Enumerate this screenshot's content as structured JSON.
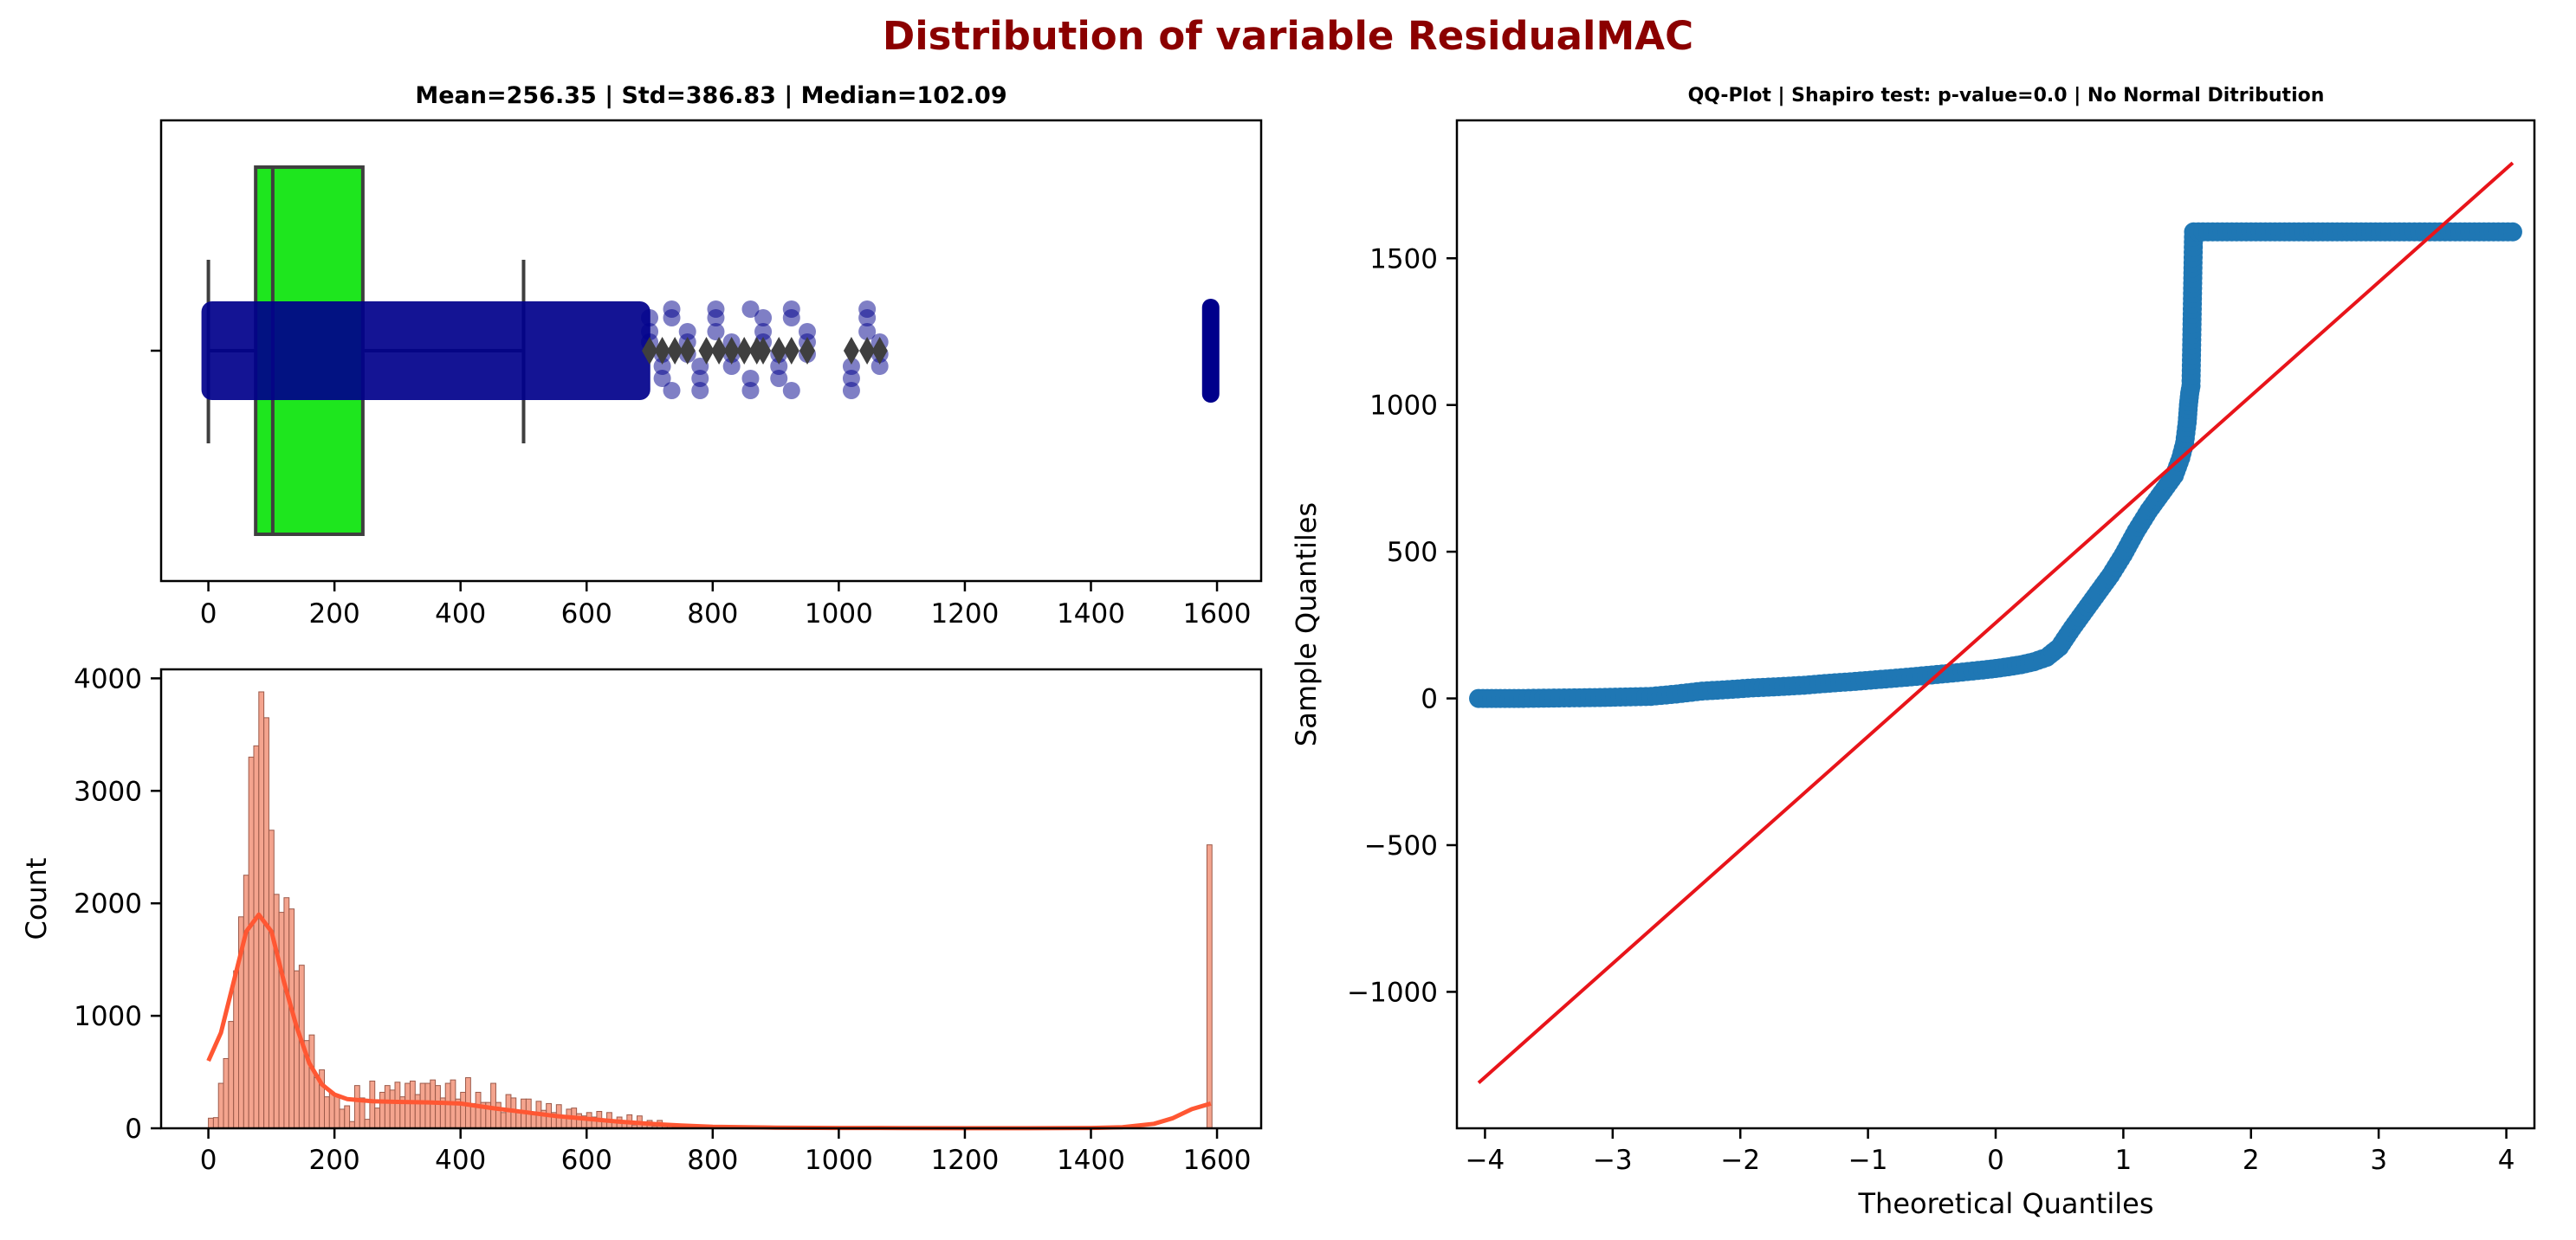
{
  "figure": {
    "suptitle": "Distribution of variable ResidualMAC",
    "title_color": "#8b0000"
  },
  "colors": {
    "box_fill": "#1ee61e",
    "box_edge": "#3f3f3f",
    "strip_points": "#00008b",
    "flier": "#3f3f3f",
    "hist_bar": "#f4a48e",
    "hist_edge": "#9c5a4a",
    "kde": "#ff5733",
    "qq_points": "#1f77b4",
    "qq_line": "#e8141a"
  },
  "chart_data": [
    {
      "type": "box",
      "title": "Mean=256.35 | Std=386.83 | Median=102.09",
      "xticks": [
        "0",
        "200",
        "400",
        "600",
        "800",
        "1000",
        "1200",
        "1400",
        "1600"
      ],
      "xlim": [
        -75,
        1670
      ],
      "box": {
        "whisker_low": 0,
        "q1": 75,
        "median": 102.09,
        "q3": 245,
        "whisker_high": 500
      },
      "fliers": [
        700,
        720,
        740,
        760,
        790,
        810,
        830,
        850,
        870,
        880,
        905,
        925,
        950,
        1020,
        1045,
        1065
      ],
      "strip": {
        "dense_range": [
          0,
          690
        ],
        "sparse": [
          700,
          720,
          735,
          760,
          780,
          805,
          830,
          860,
          880,
          905,
          925,
          950,
          1020,
          1045,
          1065
        ],
        "cluster": 1590
      }
    },
    {
      "type": "bar",
      "title": "",
      "ylabel": "Count",
      "xticks": [
        "0",
        "200",
        "400",
        "600",
        "800",
        "1000",
        "1200",
        "1400",
        "1600"
      ],
      "yticks": [
        "0",
        "1000",
        "2000",
        "3000",
        "4000"
      ],
      "xlim": [
        -75,
        1670
      ],
      "ylim": [
        0,
        4080
      ],
      "bin_width": 8,
      "bins": [
        [
          0,
          90
        ],
        [
          8,
          95
        ],
        [
          16,
          400
        ],
        [
          24,
          620
        ],
        [
          32,
          950
        ],
        [
          40,
          1400
        ],
        [
          48,
          1880
        ],
        [
          56,
          2250
        ],
        [
          64,
          3300
        ],
        [
          72,
          3400
        ],
        [
          80,
          3880
        ],
        [
          88,
          3650
        ],
        [
          96,
          2650
        ],
        [
          104,
          2080
        ],
        [
          112,
          1920
        ],
        [
          120,
          2050
        ],
        [
          128,
          1950
        ],
        [
          136,
          1400
        ],
        [
          144,
          1450
        ],
        [
          152,
          780
        ],
        [
          160,
          830
        ],
        [
          168,
          450
        ],
        [
          176,
          520
        ],
        [
          184,
          280
        ],
        [
          192,
          320
        ],
        [
          200,
          300
        ],
        [
          208,
          170
        ],
        [
          216,
          200
        ],
        [
          224,
          60
        ],
        [
          232,
          380
        ],
        [
          240,
          270
        ],
        [
          248,
          80
        ],
        [
          256,
          420
        ],
        [
          264,
          180
        ],
        [
          272,
          320
        ],
        [
          280,
          380
        ],
        [
          288,
          340
        ],
        [
          296,
          410
        ],
        [
          304,
          280
        ],
        [
          312,
          400
        ],
        [
          320,
          420
        ],
        [
          328,
          300
        ],
        [
          336,
          400
        ],
        [
          344,
          400
        ],
        [
          352,
          430
        ],
        [
          360,
          380
        ],
        [
          368,
          270
        ],
        [
          376,
          400
        ],
        [
          384,
          430
        ],
        [
          392,
          260
        ],
        [
          400,
          320
        ],
        [
          408,
          450
        ],
        [
          416,
          220
        ],
        [
          424,
          320
        ],
        [
          432,
          230
        ],
        [
          440,
          230
        ],
        [
          448,
          400
        ],
        [
          456,
          230
        ],
        [
          464,
          140
        ],
        [
          472,
          300
        ],
        [
          480,
          270
        ],
        [
          488,
          150
        ],
        [
          496,
          260
        ],
        [
          504,
          260
        ],
        [
          512,
          120
        ],
        [
          520,
          240
        ],
        [
          528,
          160
        ],
        [
          536,
          220
        ],
        [
          544,
          140
        ],
        [
          552,
          210
        ],
        [
          560,
          110
        ],
        [
          568,
          170
        ],
        [
          576,
          180
        ],
        [
          584,
          130
        ],
        [
          592,
          110
        ],
        [
          600,
          140
        ],
        [
          608,
          100
        ],
        [
          616,
          150
        ],
        [
          624,
          80
        ],
        [
          632,
          140
        ],
        [
          640,
          70
        ],
        [
          648,
          100
        ],
        [
          656,
          50
        ],
        [
          664,
          120
        ],
        [
          672,
          30
        ],
        [
          680,
          110
        ],
        [
          688,
          30
        ],
        [
          696,
          70
        ],
        [
          704,
          20
        ],
        [
          712,
          70
        ],
        [
          720,
          20
        ],
        [
          728,
          40
        ],
        [
          736,
          10
        ],
        [
          744,
          20
        ],
        [
          752,
          5
        ],
        [
          760,
          10
        ],
        [
          768,
          5
        ],
        [
          776,
          8
        ],
        [
          784,
          5
        ],
        [
          792,
          8
        ],
        [
          800,
          3
        ],
        [
          840,
          3
        ],
        [
          880,
          3
        ],
        [
          960,
          3
        ],
        [
          1040,
          3
        ],
        [
          1584,
          2520
        ]
      ],
      "kde": [
        [
          0,
          600
        ],
        [
          20,
          850
        ],
        [
          40,
          1300
        ],
        [
          60,
          1750
        ],
        [
          80,
          1900
        ],
        [
          100,
          1750
        ],
        [
          120,
          1300
        ],
        [
          140,
          900
        ],
        [
          160,
          580
        ],
        [
          180,
          390
        ],
        [
          200,
          300
        ],
        [
          220,
          260
        ],
        [
          260,
          240
        ],
        [
          300,
          235
        ],
        [
          350,
          230
        ],
        [
          400,
          220
        ],
        [
          450,
          180
        ],
        [
          500,
          145
        ],
        [
          550,
          110
        ],
        [
          600,
          85
        ],
        [
          650,
          60
        ],
        [
          700,
          40
        ],
        [
          750,
          25
        ],
        [
          800,
          14
        ],
        [
          900,
          6
        ],
        [
          1000,
          3
        ],
        [
          1100,
          2
        ],
        [
          1200,
          1
        ],
        [
          1300,
          1
        ],
        [
          1400,
          3
        ],
        [
          1450,
          10
        ],
        [
          1500,
          40
        ],
        [
          1530,
          90
        ],
        [
          1560,
          170
        ],
        [
          1590,
          220
        ]
      ]
    },
    {
      "type": "scatter",
      "title": "QQ-Plot | Shapiro test: p-value=0.0 | No Normal Ditribution",
      "xlabel": "Theoretical Quantiles",
      "ylabel": "Sample Quantiles",
      "xticks": [
        "−4",
        "−3",
        "−2",
        "−1",
        "0",
        "1",
        "2",
        "3",
        "4"
      ],
      "yticks": [
        "−1000",
        "−500",
        "0",
        "500",
        "1000",
        "1500"
      ],
      "xlim": [
        -4.22,
        4.22
      ],
      "ylim": [
        -1465,
        1970
      ],
      "fit_line": [
        [
          -4.05,
          -1310
        ],
        [
          4.05,
          1825
        ]
      ],
      "points": [
        [
          -4.05,
          0
        ],
        [
          -3.88,
          0
        ],
        [
          -3.7,
          0
        ],
        [
          -3.5,
          1
        ],
        [
          -3.3,
          2
        ],
        [
          -3.1,
          3
        ],
        [
          -2.9,
          5
        ],
        [
          -2.7,
          7
        ],
        [
          -2.5,
          15
        ],
        [
          -2.3,
          25
        ],
        [
          -2.1,
          30
        ],
        [
          -1.9,
          36
        ],
        [
          -1.7,
          40
        ],
        [
          -1.5,
          45
        ],
        [
          -1.3,
          52
        ],
        [
          -1.1,
          58
        ],
        [
          -0.9,
          65
        ],
        [
          -0.7,
          72
        ],
        [
          -0.5,
          80
        ],
        [
          -0.3,
          88
        ],
        [
          -0.1,
          97
        ],
        [
          0.0,
          102
        ],
        [
          0.1,
          108
        ],
        [
          0.2,
          115
        ],
        [
          0.3,
          125
        ],
        [
          0.4,
          140
        ],
        [
          0.5,
          175
        ],
        [
          0.6,
          240
        ],
        [
          0.7,
          300
        ],
        [
          0.8,
          360
        ],
        [
          0.9,
          420
        ],
        [
          1.0,
          490
        ],
        [
          1.1,
          570
        ],
        [
          1.2,
          640
        ],
        [
          1.3,
          700
        ],
        [
          1.4,
          760
        ],
        [
          1.45,
          820
        ],
        [
          1.48,
          870
        ],
        [
          1.5,
          940
        ],
        [
          1.51,
          1000
        ],
        [
          1.52,
          1040
        ],
        [
          1.53,
          1065
        ],
        [
          1.55,
          1590
        ],
        [
          1.7,
          1590
        ],
        [
          2.0,
          1590
        ],
        [
          2.3,
          1590
        ],
        [
          2.6,
          1590
        ],
        [
          2.9,
          1590
        ],
        [
          3.2,
          1590
        ],
        [
          3.4,
          1590
        ],
        [
          3.6,
          1590
        ],
        [
          3.75,
          1590
        ],
        [
          3.9,
          1590
        ],
        [
          4.05,
          1590
        ]
      ]
    }
  ]
}
